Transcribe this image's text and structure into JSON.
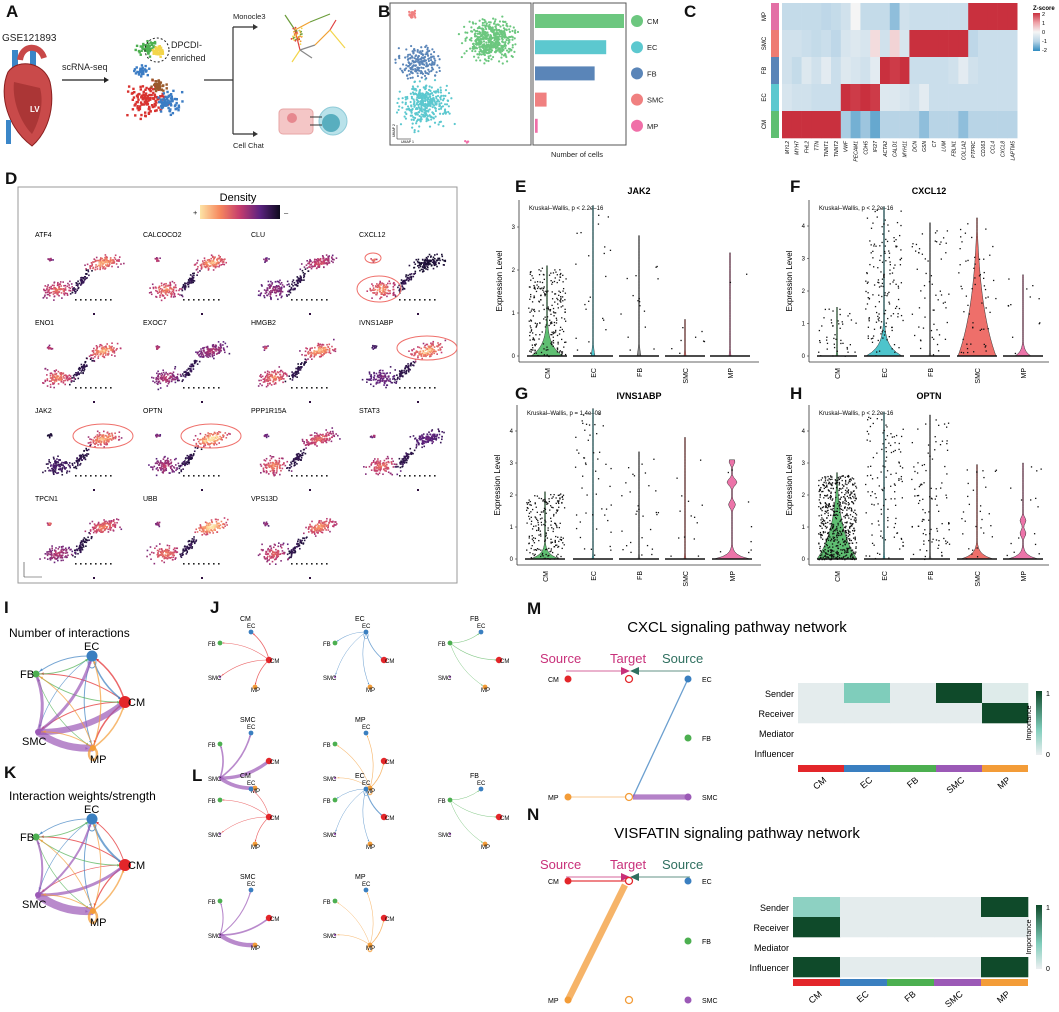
{
  "labels": {
    "A": "A",
    "B": "B",
    "C": "C",
    "D": "D",
    "E": "E",
    "F": "F",
    "G": "G",
    "H": "H",
    "I": "I",
    "J": "J",
    "K": "K",
    "L": "L",
    "M": "M",
    "N": "N"
  },
  "panel_a": {
    "dataset": "GSE121893",
    "lv_label": "LV",
    "method": "scRNA-seq",
    "cluster_note_1": "DPCDI-",
    "cluster_note_2": "enriched",
    "branch_top": "Monocle3",
    "branch_bottom": "Cell Chat"
  },
  "panel_b": {
    "xlabel": "Number of cells",
    "umap_x": "UMAP 1",
    "umap_y": "UMAP 2",
    "cell_types": [
      {
        "name": "CM",
        "color": "#6cc77f",
        "relative_count": 100
      },
      {
        "name": "EC",
        "color": "#5cc8cf",
        "relative_count": 80
      },
      {
        "name": "FB",
        "color": "#5a85b8",
        "relative_count": 67
      },
      {
        "name": "SMC",
        "color": "#f08080",
        "relative_count": 13
      },
      {
        "name": "MP",
        "color": "#f06fa8",
        "relative_count": 3
      }
    ]
  },
  "panel_c": {
    "legend_title": "Z-score",
    "legend_ticks": [
      "2",
      "1",
      "0",
      "-1",
      "-2"
    ],
    "rows": [
      {
        "name": "MP",
        "color": "#e36fa5"
      },
      {
        "name": "SMC",
        "color": "#ee7b72"
      },
      {
        "name": "FB",
        "color": "#5a85b8"
      },
      {
        "name": "EC",
        "color": "#5cc8cf"
      },
      {
        "name": "CM",
        "color": "#5fbf72"
      }
    ],
    "genes": [
      "MYL2",
      "MYH7",
      "FHL2",
      "TTN",
      "TNNT1",
      "TNNT2",
      "VWF",
      "PECAM1",
      "CDH5",
      "IFI27",
      "ACTA2",
      "CALD1",
      "MYH11",
      "DCN",
      "GSN",
      "C7",
      "LUM",
      "FBLN1",
      "COL1A2",
      "PTPRC",
      "CD163",
      "CCL4",
      "CXCL8",
      "LAPTM5"
    ],
    "zscores": [
      [
        -0.8,
        -0.8,
        -0.8,
        -0.8,
        -0.9,
        -0.8,
        -0.6,
        0,
        -0.8,
        -0.8,
        -0.8,
        -1.3,
        -0.6,
        -0.7,
        -0.7,
        -0.7,
        -0.7,
        -0.7,
        -0.7,
        2,
        2,
        2,
        2,
        2
      ],
      [
        -0.6,
        -0.6,
        -0.7,
        -0.8,
        -0.7,
        -0.9,
        -0.5,
        -0.4,
        -0.5,
        0.3,
        -0.6,
        0.4,
        -0.5,
        2,
        2,
        2,
        2,
        2,
        2,
        -0.9,
        -0.7,
        -0.7,
        -0.7,
        -0.7
      ],
      [
        -0.6,
        -0.8,
        -0.4,
        -0.6,
        -0.3,
        -0.7,
        -0.4,
        -0.5,
        -0.6,
        -0.3,
        2,
        1.9,
        2,
        -0.7,
        -0.7,
        -0.7,
        -0.7,
        -0.6,
        -0.3,
        -0.6,
        -0.7,
        -0.7,
        -0.7,
        -0.7
      ],
      [
        -0.5,
        -0.6,
        -0.6,
        -0.7,
        -0.7,
        -0.7,
        2,
        1.9,
        2,
        1.9,
        -0.4,
        -0.4,
        -0.5,
        -0.6,
        -0.3,
        -0.7,
        -0.7,
        -0.7,
        -0.7,
        -0.7,
        -0.7,
        -0.7,
        -0.7,
        -0.7
      ],
      [
        2,
        2,
        2,
        2,
        2,
        2,
        -1.1,
        -1.5,
        -1.2,
        -1.6,
        -1,
        -1,
        -1,
        -1,
        -1.3,
        -1,
        -1,
        -1,
        -1.3,
        -1,
        -1,
        -1,
        -1,
        -1
      ]
    ]
  },
  "panel_d": {
    "legend_title": "Density",
    "legend_high": "+",
    "legend_low": "–",
    "genes": [
      {
        "name": "ATF4",
        "cm": 0.85,
        "lower": 0.7,
        "small": 0.5
      },
      {
        "name": "CALCOCO2",
        "cm": 0.85,
        "lower": 0.75,
        "small": 0.6
      },
      {
        "name": "CLU",
        "cm": 0.6,
        "lower": 0.45,
        "small": 0.4
      },
      {
        "name": "CXCL12",
        "cm": 0.05,
        "lower": 0.8,
        "small": 0.8,
        "highlight": [
          "small",
          "lower"
        ]
      },
      {
        "name": "ENO1",
        "cm": 0.85,
        "lower": 0.75,
        "small": 0.6
      },
      {
        "name": "EXOC7",
        "cm": 0.5,
        "lower": 0.5,
        "small": 0.6
      },
      {
        "name": "HMGB2",
        "cm": 0.85,
        "lower": 0.75,
        "small": 0.6
      },
      {
        "name": "IVNS1ABP",
        "cm": 0.9,
        "lower": 0.35,
        "small": 0.2,
        "highlight": [
          "cm"
        ]
      },
      {
        "name": "JAK2",
        "cm": 0.85,
        "lower": 0.2,
        "small": 0.05,
        "highlight": [
          "cm"
        ]
      },
      {
        "name": "OPTN",
        "cm": 0.95,
        "lower": 0.5,
        "small": 0.4,
        "highlight": [
          "cm"
        ]
      },
      {
        "name": "PPP1R15A",
        "cm": 0.7,
        "lower": 0.75,
        "small": 0.4
      },
      {
        "name": "STAT3",
        "cm": 0.3,
        "lower": 0.7,
        "small": 0.5
      },
      {
        "name": "TPCN1",
        "cm": 0.75,
        "lower": 0.5,
        "small": 0.7
      },
      {
        "name": "UBB",
        "cm": 0.95,
        "lower": 0.75,
        "small": 0.5
      },
      {
        "name": "VPS13D",
        "cm": 0.8,
        "lower": 0.65,
        "small": 0.5
      }
    ]
  },
  "violin_common": {
    "ylabel": "Expression Level",
    "categories": [
      "CM",
      "EC",
      "FB",
      "SMC",
      "MP"
    ],
    "colors": [
      "#5fbf72",
      "#4dc4cc",
      "#8a8a8a",
      "#ee6f6a",
      "#ec74a9"
    ]
  },
  "violins": [
    {
      "panel": "E",
      "title": "JAK2",
      "stat": "Kruskal–Wallis, p < 2.2e–16",
      "yticks": [
        "0",
        "1",
        "2",
        "3"
      ],
      "groups": [
        {
          "max": 2.1,
          "n": 240,
          "w": 16,
          "d": 0.25
        },
        {
          "max": 3.5,
          "n": 22,
          "w": 2,
          "d": 0.2
        },
        {
          "max": 2.8,
          "n": 16,
          "w": 2,
          "d": 0.2
        },
        {
          "max": 0.85,
          "n": 8,
          "w": 1,
          "d": 0.2
        },
        {
          "max": 2.4,
          "n": 2,
          "w": 1,
          "d": 0.2
        }
      ]
    },
    {
      "panel": "F",
      "title": "CXCL12",
      "stat": "Kruskal–Wallis, p < 2.2e–16",
      "yticks": [
        "0",
        "1",
        "2",
        "3",
        "4"
      ],
      "groups": [
        {
          "max": 1.5,
          "n": 45,
          "w": 1,
          "d": 0.2
        },
        {
          "max": 4.6,
          "n": 160,
          "w": 18,
          "d": 0.3
        },
        {
          "max": 4.1,
          "n": 60,
          "w": 1,
          "d": 0.2
        },
        {
          "max": 4.25,
          "n": 60,
          "w": 19,
          "d": 1.6
        },
        {
          "max": 2.5,
          "n": 12,
          "w": 8,
          "d": 0.15
        }
      ]
    },
    {
      "panel": "G",
      "title": "IVNS1ABP",
      "stat": "Kruskal–Wallis, p = 1.4e–08",
      "yticks": [
        "0",
        "1",
        "2",
        "3",
        "4"
      ],
      "groups": [
        {
          "max": 2.1,
          "n": 200,
          "w": 15,
          "d": 0.15
        },
        {
          "max": 4.7,
          "n": 50,
          "w": 1,
          "d": 0.2
        },
        {
          "max": 3.35,
          "n": 30,
          "w": 1,
          "d": 0.2
        },
        {
          "max": 3.8,
          "n": 14,
          "w": 1,
          "d": 0.2
        },
        {
          "max": 3.1,
          "n": 8,
          "w": 18,
          "d": 0.12,
          "bulbs": [
            [
              2.4,
              5
            ],
            [
              1.7,
              3.5
            ],
            [
              3.05,
              3
            ]
          ]
        }
      ]
    },
    {
      "panel": "H",
      "title": "OPTN",
      "stat": "Kruskal–Wallis, p < 2.2e–16",
      "yticks": [
        "0",
        "1",
        "2",
        "3",
        "4"
      ],
      "groups": [
        {
          "max": 2.7,
          "n": 600,
          "w": 20,
          "d": 0.9
        },
        {
          "max": 4.6,
          "n": 120,
          "w": 1,
          "d": 0.2
        },
        {
          "max": 4.5,
          "n": 100,
          "w": 1,
          "d": 0.2
        },
        {
          "max": 2.95,
          "n": 30,
          "w": 16,
          "d": 0.15
        },
        {
          "max": 3,
          "n": 15,
          "w": 15,
          "d": 0.12,
          "bulbs": [
            [
              1.2,
              3
            ],
            [
              0.8,
              3
            ]
          ]
        }
      ]
    }
  ],
  "network": {
    "nodes": [
      {
        "name": "CM",
        "color": "#e3262a"
      },
      {
        "name": "EC",
        "color": "#3a7fc0"
      },
      {
        "name": "FB",
        "color": "#4caf50"
      },
      {
        "name": "SMC",
        "color": "#9b59b6"
      },
      {
        "name": "MP",
        "color": "#f39c38"
      }
    ],
    "count_title": "Number of interactions",
    "weight_title": "Interaction weights/strength",
    "count_edges": [
      [
        "CM",
        "EC",
        1.5
      ],
      [
        "CM",
        "FB",
        1
      ],
      [
        "CM",
        "SMC",
        1
      ],
      [
        "CM",
        "MP",
        1.5
      ],
      [
        "EC",
        "FB",
        1
      ],
      [
        "EC",
        "CM",
        1.5
      ],
      [
        "EC",
        "SMC",
        0.7
      ],
      [
        "EC",
        "MP",
        1
      ],
      [
        "EC",
        "EC",
        1
      ],
      [
        "FB",
        "EC",
        1
      ],
      [
        "FB",
        "CM",
        1
      ],
      [
        "FB",
        "MP",
        0.7
      ],
      [
        "SMC",
        "EC",
        3
      ],
      [
        "SMC",
        "FB",
        3
      ],
      [
        "SMC",
        "CM",
        6
      ],
      [
        "SMC",
        "MP",
        7
      ],
      [
        "MP",
        "EC",
        1.2
      ],
      [
        "MP",
        "FB",
        1
      ],
      [
        "MP",
        "CM",
        1.5
      ],
      [
        "MP",
        "SMC",
        1
      ],
      [
        "MP",
        "MP",
        2.5
      ]
    ],
    "weight_edges": [
      [
        "CM",
        "EC",
        1
      ],
      [
        "CM",
        "FB",
        1
      ],
      [
        "CM",
        "SMC",
        0.7
      ],
      [
        "CM",
        "MP",
        1.2
      ],
      [
        "EC",
        "FB",
        0.8
      ],
      [
        "EC",
        "CM",
        2
      ],
      [
        "EC",
        "SMC",
        0.7
      ],
      [
        "EC",
        "MP",
        1
      ],
      [
        "EC",
        "EC",
        1
      ],
      [
        "FB",
        "EC",
        0.8
      ],
      [
        "FB",
        "CM",
        0.8
      ],
      [
        "FB",
        "MP",
        0.7
      ],
      [
        "SMC",
        "EC",
        2
      ],
      [
        "SMC",
        "FB",
        2
      ],
      [
        "SMC",
        "CM",
        3
      ],
      [
        "SMC",
        "MP",
        8
      ],
      [
        "MP",
        "EC",
        1
      ],
      [
        "MP",
        "FB",
        0.8
      ],
      [
        "MP",
        "CM",
        1.5
      ],
      [
        "MP",
        "SMC",
        1
      ],
      [
        "MP",
        "MP",
        2.5
      ]
    ]
  },
  "pathways": [
    {
      "panel": "M",
      "title": "CXCL signaling pathway network",
      "header": {
        "source_left": "Source",
        "target": "Target",
        "source_right": "Source",
        "left_color": "#c8307a",
        "right_color": "#2f6f5f"
      },
      "left_nodes": [
        "CM",
        "MP"
      ],
      "right_nodes": [
        "EC",
        "FB",
        "SMC"
      ],
      "edges": [
        [
          "EC",
          "MP",
          1
        ],
        [
          "SMC",
          "MP",
          4
        ],
        [
          "MP",
          "MP",
          0.6
        ]
      ],
      "roles": [
        "Sender",
        "Receiver",
        "Mediator",
        "Influencer"
      ],
      "importance": [
        [
          0.03,
          0.4,
          0.03,
          1,
          0.05
        ],
        [
          0.03,
          0.03,
          0.03,
          0.03,
          1
        ],
        [
          null,
          null,
          null,
          null,
          null
        ],
        [
          null,
          null,
          null,
          null,
          null
        ]
      ],
      "legend_title": "Importance",
      "legend_max": "1",
      "legend_min": "0"
    },
    {
      "panel": "N",
      "title": "VISFATIN signaling pathway network",
      "header": {
        "source_left": "Source",
        "target": "Target",
        "source_right": "Source",
        "left_color": "#c8307a",
        "right_color": "#2f6f5f"
      },
      "left_nodes": [
        "CM",
        "MP"
      ],
      "right_nodes": [
        "EC",
        "FB",
        "SMC"
      ],
      "edges": [
        [
          "CM",
          "CM",
          1.2
        ],
        [
          "MP",
          "CM",
          5
        ]
      ],
      "roles": [
        "Sender",
        "Receiver",
        "Mediator",
        "Influencer"
      ],
      "importance": [
        [
          0.35,
          0.03,
          0.03,
          0.03,
          1
        ],
        [
          1,
          0.03,
          0.03,
          0.03,
          0.03
        ],
        [
          null,
          null,
          null,
          null,
          null
        ],
        [
          1,
          0.03,
          0.03,
          0.03,
          1
        ]
      ],
      "legend_title": "Importance",
      "legend_max": "1",
      "legend_min": "0"
    }
  ]
}
